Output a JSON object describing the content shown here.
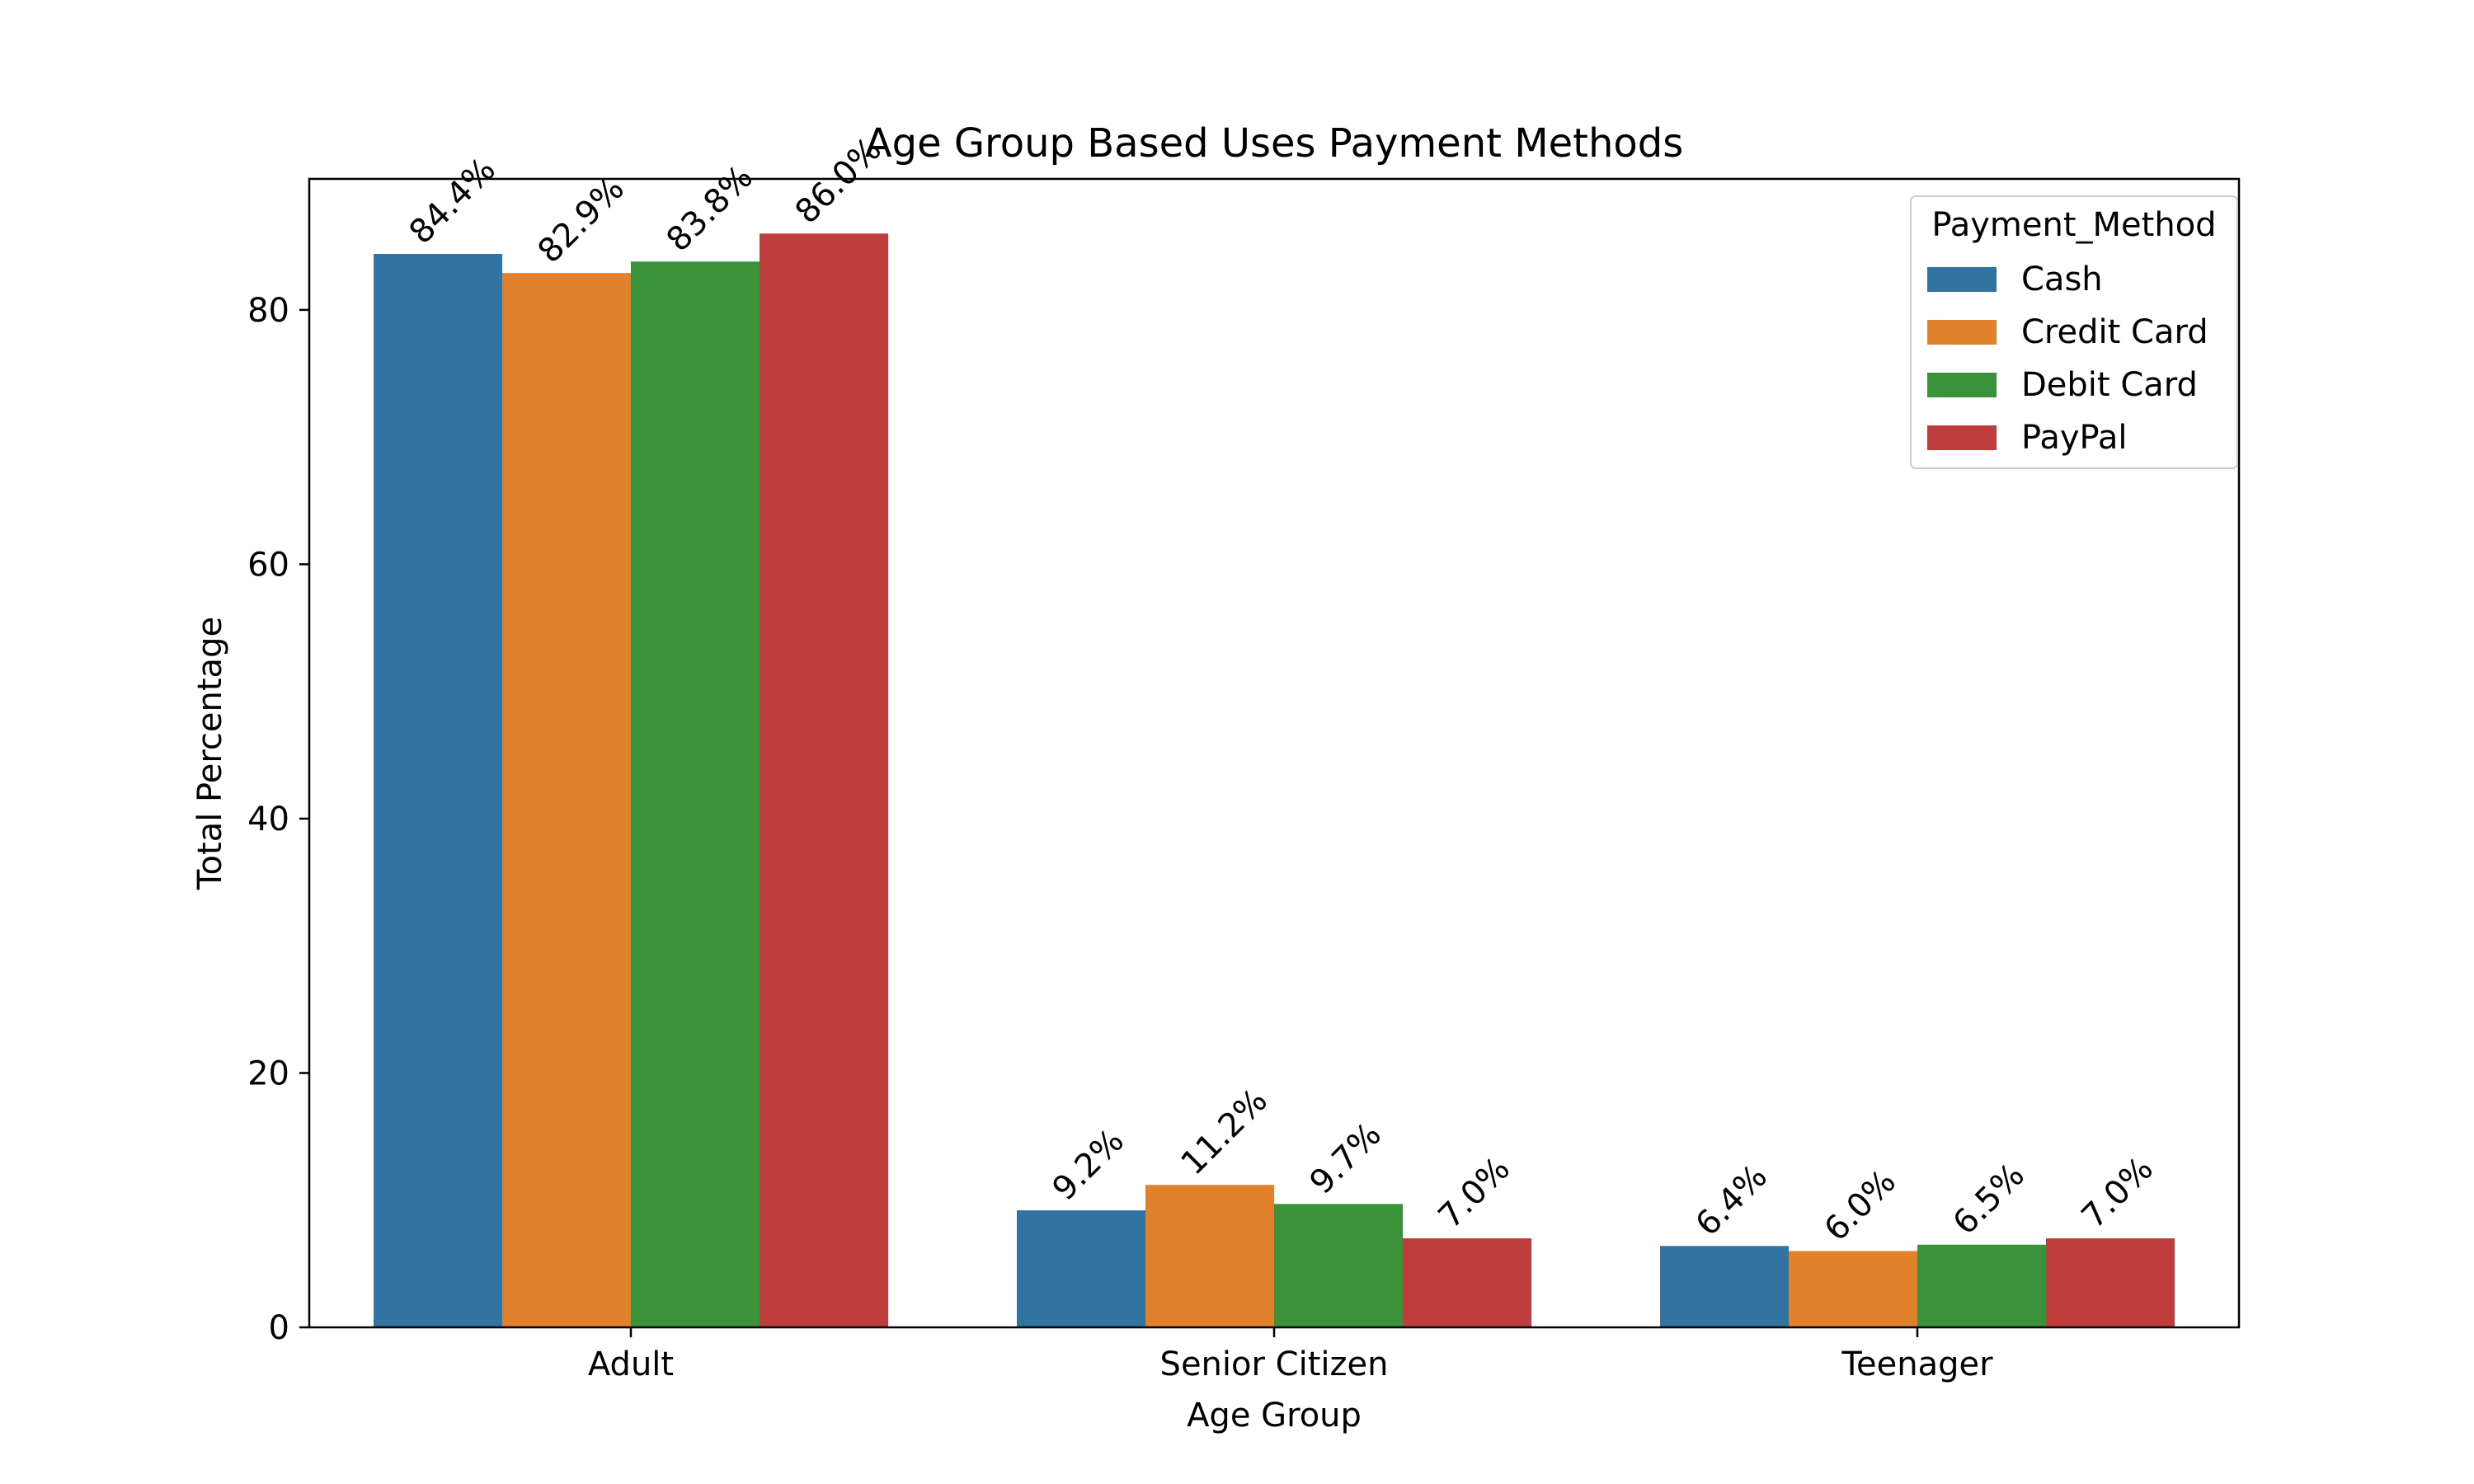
{
  "chart_data": {
    "type": "bar",
    "title": "Age Group Based Uses Payment Methods",
    "xlabel": "Age Group",
    "ylabel": "Total Percentage",
    "categories": [
      "Adult",
      "Senior Citizen",
      "Teenager"
    ],
    "ylim": [
      0,
      90.3
    ],
    "yticks": [
      0,
      20,
      40,
      60,
      80
    ],
    "grid": false,
    "legend": {
      "title": "Payment_Method",
      "placement": "top-right"
    },
    "series": [
      {
        "name": "Cash",
        "color": "#3274a1",
        "values": [
          84.4,
          9.2,
          6.4
        ],
        "labels": [
          "84.4%",
          "9.2%",
          "6.4%"
        ]
      },
      {
        "name": "Credit Card",
        "color": "#e1812c",
        "values": [
          82.9,
          11.2,
          6.0
        ],
        "labels": [
          "82.9%",
          "11.2%",
          "6.0%"
        ]
      },
      {
        "name": "Debit Card",
        "color": "#3a923a",
        "values": [
          83.8,
          9.7,
          6.5
        ],
        "labels": [
          "83.8%",
          "9.7%",
          "6.5%"
        ]
      },
      {
        "name": "PayPal",
        "color": "#c03d3e",
        "values": [
          86.0,
          7.0,
          7.0
        ],
        "labels": [
          "86.0%",
          "7.0%",
          "7.0%"
        ]
      }
    ]
  }
}
